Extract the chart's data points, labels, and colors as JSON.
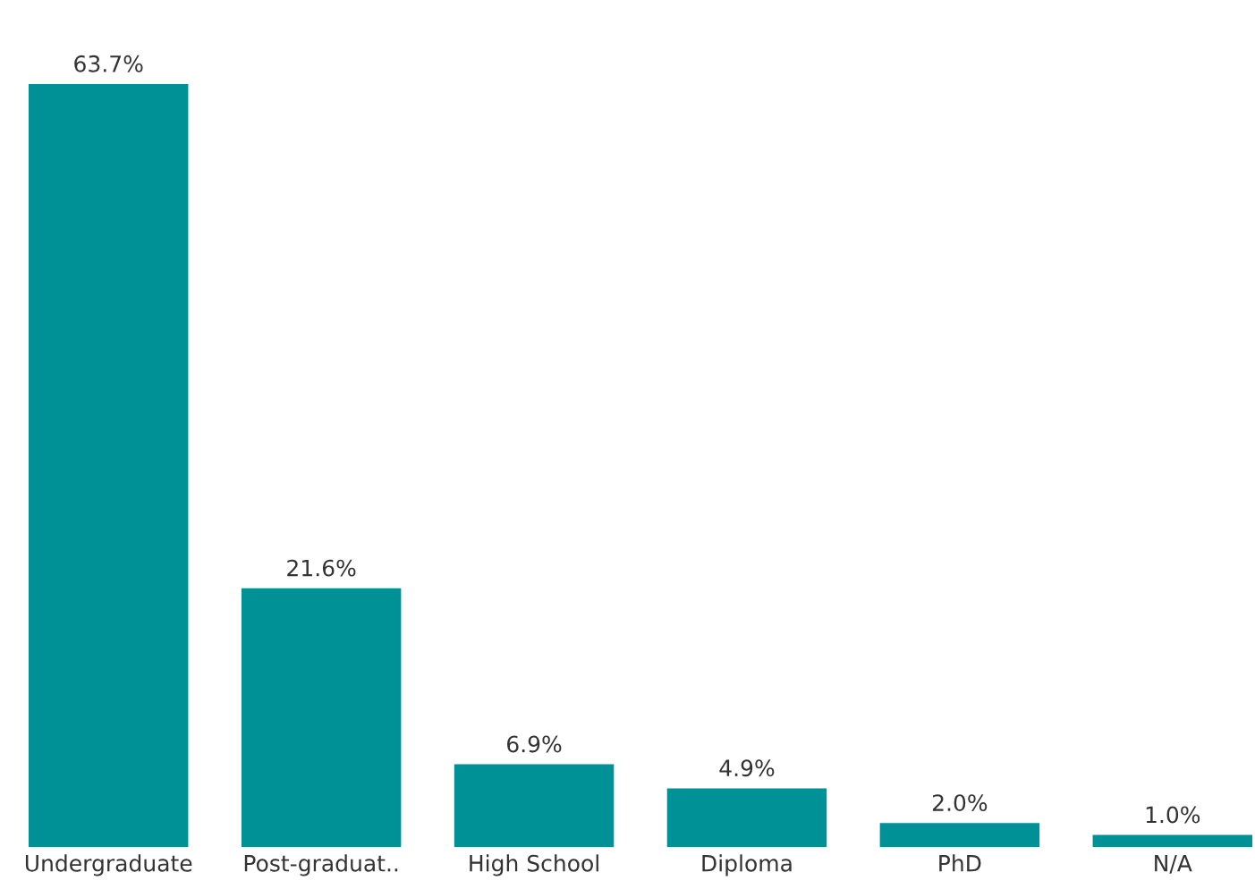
{
  "chart_data": {
    "type": "bar",
    "categories": [
      "Undergraduate",
      "Post-graduat..",
      "High School",
      "Diploma",
      "PhD",
      "N/A"
    ],
    "values": [
      63.7,
      21.6,
      6.9,
      4.9,
      2.0,
      1.0
    ],
    "value_labels": [
      "63.7%",
      "21.6%",
      "6.9%",
      "4.9%",
      "2.0%",
      "1.0%"
    ],
    "color": "#009196",
    "grid": false,
    "legend": false
  }
}
